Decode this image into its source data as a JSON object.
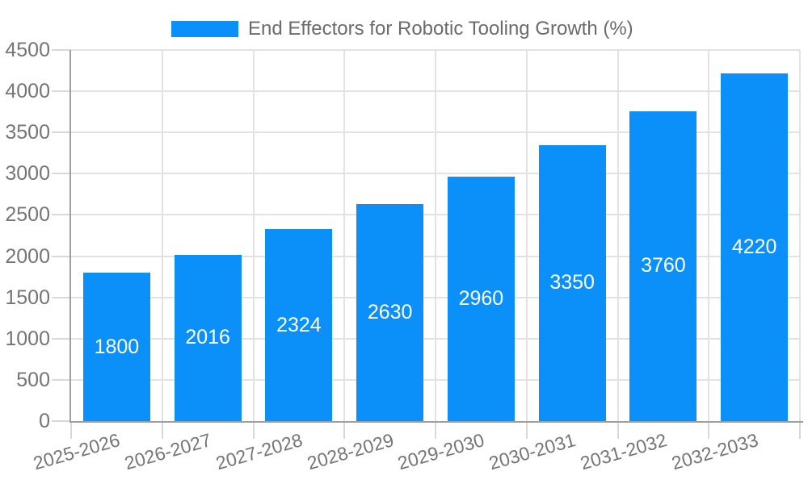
{
  "legend": {
    "label": "End Effectors for Robotic Tooling Growth (%)"
  },
  "chart_data": {
    "type": "bar",
    "title": "End Effectors for Robotic Tooling Growth (%)",
    "categories": [
      "2025-2026",
      "2026-2027",
      "2027-2028",
      "2028-2029",
      "2029-2030",
      "2030-2031",
      "2031-2032",
      "2032-2033"
    ],
    "values": [
      1800,
      2016,
      2324,
      2630,
      2960,
      3350,
      3760,
      4220
    ],
    "xlabel": "",
    "ylabel": "",
    "ylim": [
      0,
      4500
    ],
    "ytick_step": 500,
    "ytick_labels": [
      "0",
      "500",
      "1000",
      "1500",
      "2000",
      "2500",
      "3000",
      "3500",
      "4000",
      "4500"
    ],
    "grid": true,
    "legend_position": "top-center",
    "bar_value_labels": "inside-center"
  },
  "colors": {
    "bar": "#0b90fa",
    "bar_label": "#ffffff",
    "axis": "#9e9e9e",
    "gridline": "#e2e2e2",
    "tick": "#d9d9d9",
    "tick_label": "#757575",
    "legend_text": "#6b6b6b",
    "background": "#ffffff"
  }
}
